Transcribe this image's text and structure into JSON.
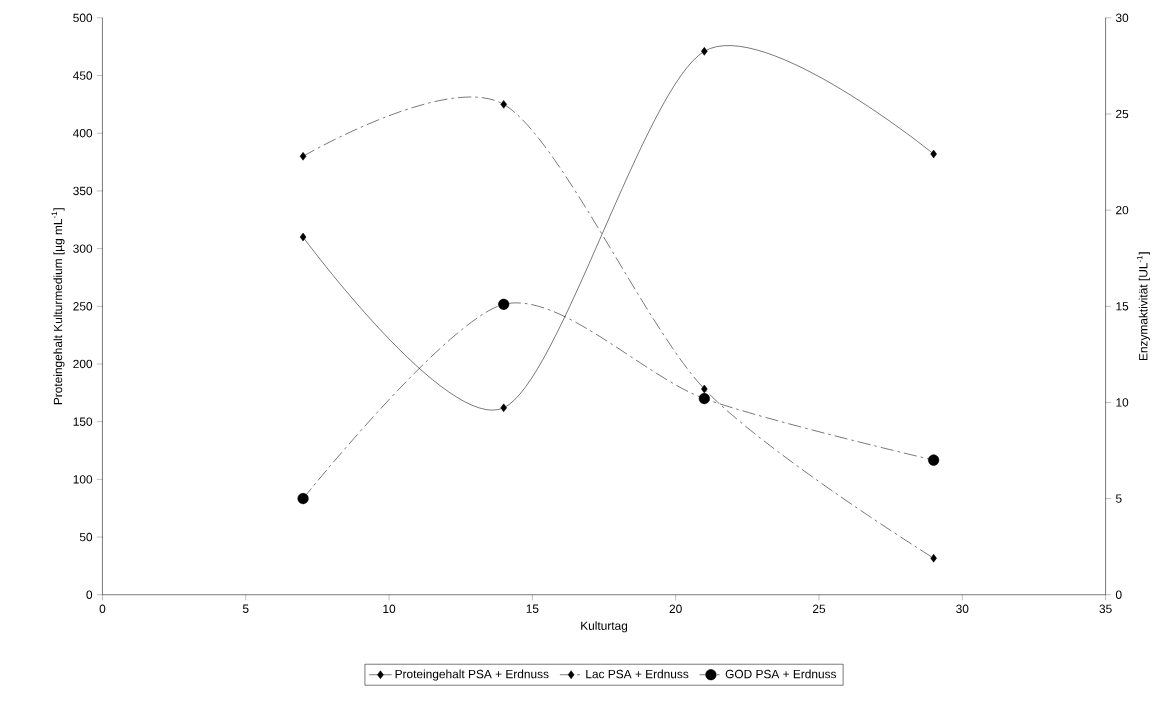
{
  "chart_data": {
    "type": "line",
    "xlabel": "Kulturtag",
    "ylabel": "Proteingehalt Kulturmedium [µg mL$^{-1}$]",
    "y2label": "Enzymaktivität [UL$^{-1}$]",
    "xlim": [
      0,
      35
    ],
    "xticks": [
      0,
      5,
      10,
      15,
      20,
      25,
      30,
      35
    ],
    "ylim": [
      0,
      500
    ],
    "yticks": [
      0,
      50,
      100,
      150,
      200,
      250,
      300,
      350,
      400,
      450,
      500
    ],
    "y2lim": [
      0,
      30
    ],
    "y2ticks": [
      0,
      5,
      10,
      15,
      20,
      25,
      30
    ],
    "legend": "bottom",
    "grid": false,
    "series": [
      {
        "name": "Proteingehalt PSA + Erdnuss",
        "color": "#000000",
        "x": [
          7,
          14,
          21,
          29
        ],
        "values": [
          310,
          162,
          471,
          382
        ],
        "marker": "diamond",
        "line_style": "solid"
      },
      {
        "name": "Lac PSA + Erdnuss",
        "color": "#000000",
        "x": [
          7,
          14,
          21,
          29
        ],
        "values": [
          22.8,
          25.5,
          10.7,
          1.9
        ],
        "axis": "y2",
        "marker": "diamond",
        "line_style": "dashed"
      },
      {
        "name": "GOD PSA + Erdnuss",
        "color": "#000000",
        "x": [
          7,
          14,
          21,
          29
        ],
        "values": [
          5.0,
          15.1,
          10.2,
          7.0
        ],
        "axis": "y2",
        "marker": "circle",
        "line_style": "dashed"
      }
    ]
  }
}
